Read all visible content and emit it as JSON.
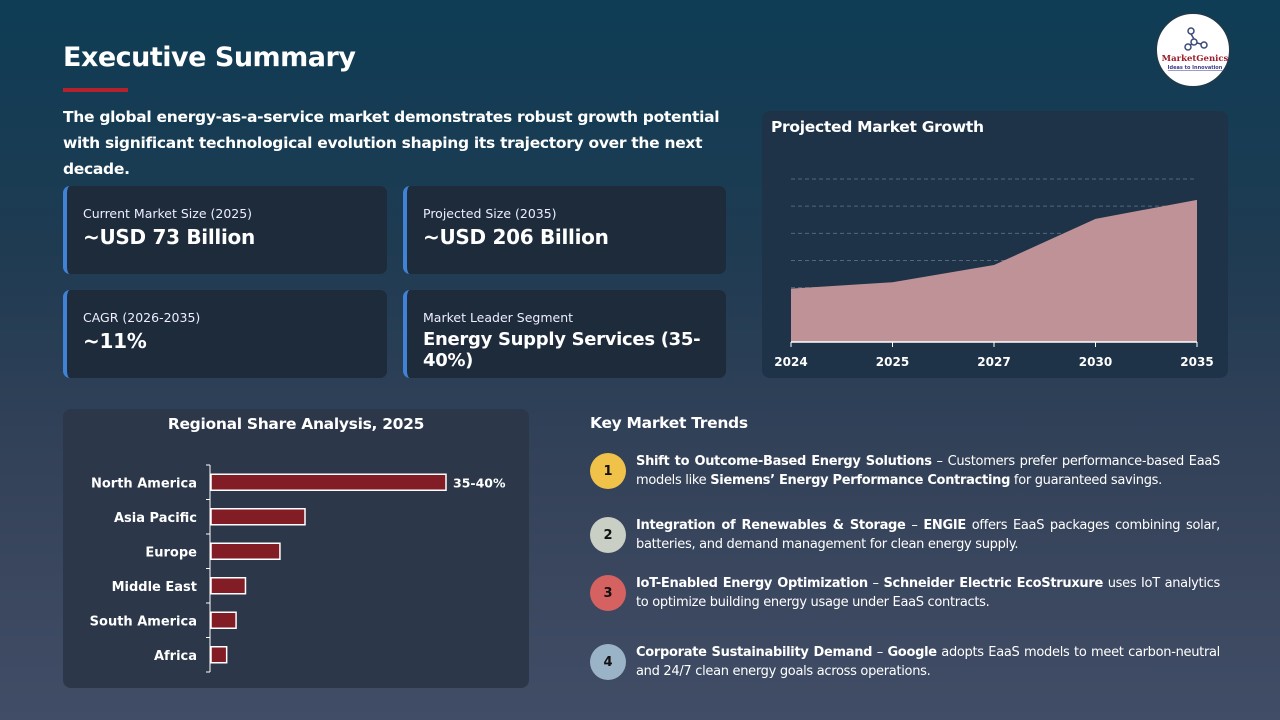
{
  "header": {
    "title": "Executive Summary",
    "intro": "The global energy-as-a-service market demonstrates robust growth potential with significant technological evolution shaping its trajectory over the next decade."
  },
  "logo": {
    "brand": "MarketGenics",
    "tagline": "Ideas to Innovation"
  },
  "kpis": [
    {
      "label": "Current Market Size (2025)",
      "value": "~USD 73 Billion"
    },
    {
      "label": "Projected Size (2035)",
      "value": "~USD 206 Billion"
    },
    {
      "label": "CAGR (2026-2035)",
      "value": "~11%"
    },
    {
      "label": "Market Leader Segment",
      "value": "Energy Supply Services (35-40%)"
    }
  ],
  "colors": {
    "accent": "#3f82d6",
    "title_bar": "#b5222c",
    "bar": "#821c25",
    "area": "#be9297"
  },
  "chart_data": [
    {
      "type": "area",
      "title": "Projected Market Growth",
      "categories": [
        "2024",
        "2025",
        "2027",
        "2030",
        "2035"
      ],
      "values": [
        59,
        66,
        85,
        136,
        157
      ],
      "ylim": [
        0,
        180
      ],
      "grid": true,
      "y_tick_labels_shown": false
    },
    {
      "type": "bar",
      "orientation": "horizontal",
      "title": "Regional Share Analysis, 2025",
      "categories": [
        "North America",
        "Asia Pacific",
        "Europe",
        "Middle East",
        "South America",
        "Africa"
      ],
      "values": [
        37.5,
        15,
        11,
        5.5,
        4,
        2.5
      ],
      "data_labels": [
        "35-40%",
        "",
        "",
        "",
        "",
        ""
      ],
      "xlim": [
        0,
        40
      ]
    }
  ],
  "trends": {
    "title": "Key Market Trends",
    "items": [
      {
        "num": "1",
        "color": "#f0c24a",
        "parts": [
          [
            "b",
            "Shift to Outcome-Based Energy Solutions"
          ],
          [
            "t",
            " – Customers prefer performance-based EaaS models like "
          ],
          [
            "b",
            "Siemens’ Energy Performance Contracting"
          ],
          [
            "t",
            " for guaranteed savings."
          ]
        ]
      },
      {
        "num": "2",
        "color": "#c9cfc4",
        "parts": [
          [
            "b",
            "Integration of Renewables & Storage"
          ],
          [
            "t",
            " – "
          ],
          [
            "b",
            "ENGIE"
          ],
          [
            "t",
            " offers EaaS packages combining solar, batteries, and demand management for clean energy supply."
          ]
        ]
      },
      {
        "num": "3",
        "color": "#d56161",
        "parts": [
          [
            "b",
            "IoT-Enabled Energy Optimization"
          ],
          [
            "t",
            " – "
          ],
          [
            "b",
            "Schneider Electric EcoStruxure"
          ],
          [
            "t",
            " uses IoT analytics to optimize building energy usage under EaaS contracts."
          ]
        ]
      },
      {
        "num": "4",
        "color": "#9ab3c7",
        "parts": [
          [
            "b",
            "Corporate Sustainability Demand"
          ],
          [
            "t",
            " – "
          ],
          [
            "b",
            "Google"
          ],
          [
            "t",
            " adopts EaaS models to meet carbon-neutral and 24/7 clean energy goals across operations."
          ]
        ]
      }
    ]
  }
}
